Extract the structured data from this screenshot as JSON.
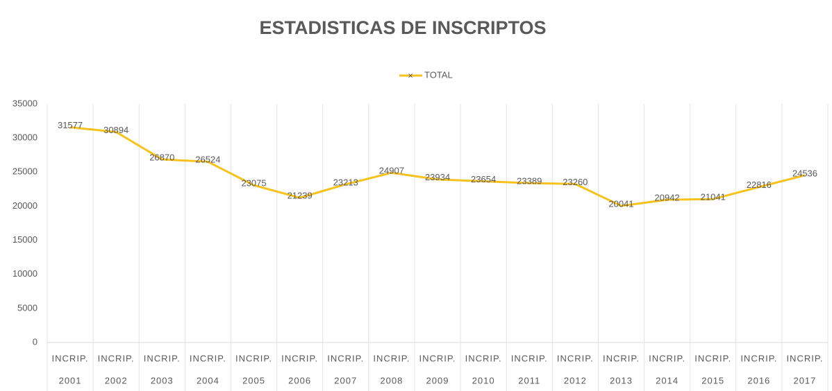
{
  "chart_data": {
    "type": "line",
    "title": "ESTADISTICAS DE INSCRIPTOS",
    "categories": [
      [
        "INCRIP.",
        "2001"
      ],
      [
        "INCRIP.",
        "2002"
      ],
      [
        "INCRIP.",
        "2003"
      ],
      [
        "INCRIP.",
        "2004"
      ],
      [
        "INCRIP.",
        "2005"
      ],
      [
        "INCRIP.",
        "2006"
      ],
      [
        "INCRIP.",
        "2007"
      ],
      [
        "INCRIP.",
        "2008"
      ],
      [
        "INCRIP.",
        "2009"
      ],
      [
        "INCRIP.",
        "2010"
      ],
      [
        "INCRIP.",
        "2011"
      ],
      [
        "INCRIP.",
        "2012"
      ],
      [
        "INCRIP.",
        "2013"
      ],
      [
        "INCRIP.",
        "2014"
      ],
      [
        "INCRIP.",
        "2015"
      ],
      [
        "INCRIP.",
        "2016"
      ],
      [
        "INCRIP.",
        "2017"
      ]
    ],
    "series": [
      {
        "name": "TOTAL",
        "color": "#f6c21b",
        "values": [
          31577,
          30894,
          26870,
          26524,
          23075,
          21239,
          23213,
          24907,
          23934,
          23654,
          23389,
          23260,
          20041,
          20942,
          21041,
          22816,
          24536
        ]
      }
    ],
    "ylim": [
      0,
      35000
    ],
    "yticks": [
      0,
      5000,
      10000,
      15000,
      20000,
      25000,
      30000,
      35000
    ],
    "grid": "vertical",
    "legend": "top"
  }
}
